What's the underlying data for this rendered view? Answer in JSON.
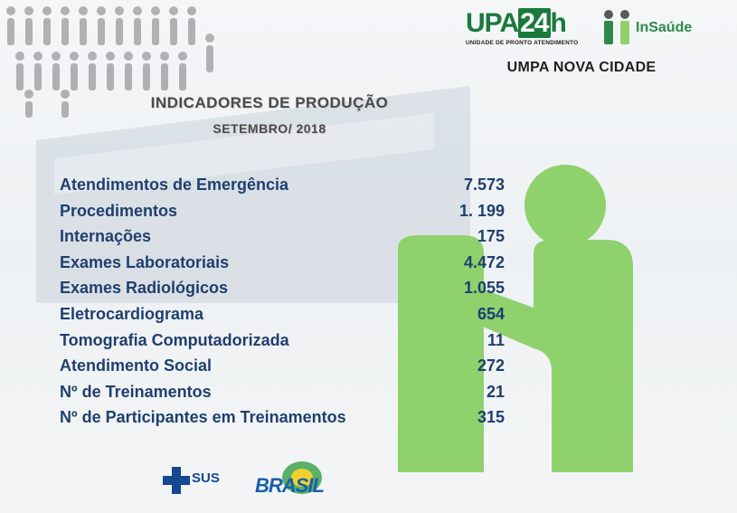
{
  "header": {
    "upa_brand": "UPA",
    "upa_brand_num": "24",
    "upa_brand_h": "h",
    "upa_subtitle": "UNIDADE DE PRONTO ATENDIMENTO",
    "insaude_name": "InSaúde",
    "unit_name": "UMPA NOVA CIDADE"
  },
  "report": {
    "title": "INDICADORES DE PRODUÇÃO",
    "period": "SETEMBRO/ 2018"
  },
  "indicators": [
    {
      "label": "Atendimentos de Emergência",
      "value": "7.573"
    },
    {
      "label": "Procedimentos",
      "value": "1. 199"
    },
    {
      "label": "Internações",
      "value": "175"
    },
    {
      "label": "Exames Laboratoriais",
      "value": "4.472"
    },
    {
      "label": "Exames Radiológicos",
      "value": "1.055"
    },
    {
      "label": "Eletrocardiograma",
      "value": "654"
    },
    {
      "label": "Tomografia Computadorizada",
      "value": "11"
    },
    {
      "label": "Atendimento Social",
      "value": "272"
    },
    {
      "label": "Nº de Treinamentos",
      "value": "21"
    },
    {
      "label": "Nº de Participantes em Treinamentos",
      "value": "315"
    }
  ],
  "footer": {
    "sus_label": "SUS",
    "brasil_label": "BRASIL"
  },
  "colors": {
    "accent_green": "#8fd16d",
    "text_blue": "#1f3f6f",
    "upa_green": "#1a7a3e"
  }
}
